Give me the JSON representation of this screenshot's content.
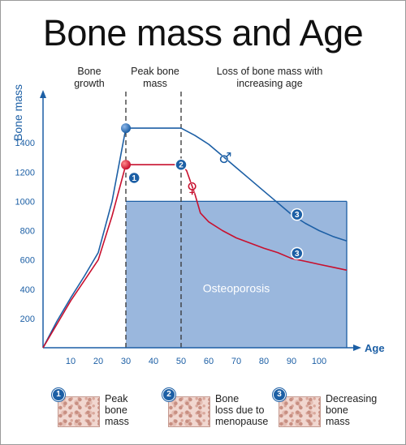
{
  "title": "Bone mass and Age",
  "phases": [
    {
      "label": "Bone\ngrowth"
    },
    {
      "label": "Peak bone\nmass"
    },
    {
      "label": "Loss of bone mass with\nincreasing age"
    }
  ],
  "legend": [
    {
      "number": "1",
      "text": "Peak\nbone\nmass"
    },
    {
      "number": "2",
      "text": "Bone\nloss due to\nmenopause"
    },
    {
      "number": "3",
      "text": "Decreasing\nbone\nmass"
    }
  ],
  "colors": {
    "male": "#1c5fa5",
    "female": "#c8102e",
    "osteoporosis_fill": "#9ab7dd",
    "axis": "#1c5fa5",
    "badge": "#1c5fa5"
  },
  "chart_data": {
    "type": "line",
    "xlabel": "Age",
    "ylabel": "Bone mass",
    "xlim": [
      0,
      110
    ],
    "ylim": [
      0,
      1650
    ],
    "xticks": [
      10,
      20,
      30,
      40,
      50,
      60,
      70,
      80,
      90,
      100
    ],
    "yticks": [
      200,
      400,
      600,
      800,
      1000,
      1200,
      1400
    ],
    "phase_dividers": [
      30,
      50
    ],
    "series": [
      {
        "symbol": "♂",
        "icon": "male-symbol",
        "x": [
          0,
          5,
          10,
          15,
          20,
          25,
          30,
          35,
          40,
          45,
          50,
          55,
          60,
          65,
          70,
          75,
          80,
          85,
          90,
          95,
          100,
          105,
          110
        ],
        "y": [
          0,
          180,
          340,
          490,
          650,
          1000,
          1500,
          1500,
          1500,
          1500,
          1500,
          1450,
          1390,
          1310,
          1230,
          1150,
          1070,
          990,
          910,
          850,
          800,
          760,
          730
        ]
      },
      {
        "symbol": "♀",
        "icon": "female-symbol",
        "x": [
          0,
          5,
          10,
          15,
          20,
          25,
          30,
          35,
          40,
          45,
          50,
          52,
          55,
          57,
          60,
          65,
          70,
          75,
          80,
          85,
          90,
          95,
          100,
          105,
          110
        ],
        "y": [
          0,
          160,
          320,
          460,
          600,
          900,
          1250,
          1250,
          1250,
          1250,
          1250,
          1210,
          1050,
          920,
          860,
          800,
          750,
          715,
          680,
          650,
          610,
          590,
          570,
          550,
          530
        ]
      }
    ],
    "markers": [
      {
        "series": 0,
        "x": 30,
        "y": 1500
      },
      {
        "series": 1,
        "x": 30,
        "y": 1250
      }
    ],
    "annotations": [
      {
        "label": "1",
        "x": 33,
        "y": 1160
      },
      {
        "label": "2",
        "x": 50,
        "y": 1250
      },
      {
        "label": "3",
        "x": 92,
        "y": 910
      },
      {
        "label": "3",
        "x": 92,
        "y": 645
      }
    ],
    "symbol_positions": [
      {
        "series": 0,
        "x": 66,
        "y": 1295
      },
      {
        "series": 1,
        "x": 54,
        "y": 1090
      }
    ],
    "regions": [
      {
        "label": "Osteoporosis",
        "x0": 30,
        "x1": 110,
        "y0": 0,
        "y1": 1000
      }
    ]
  }
}
